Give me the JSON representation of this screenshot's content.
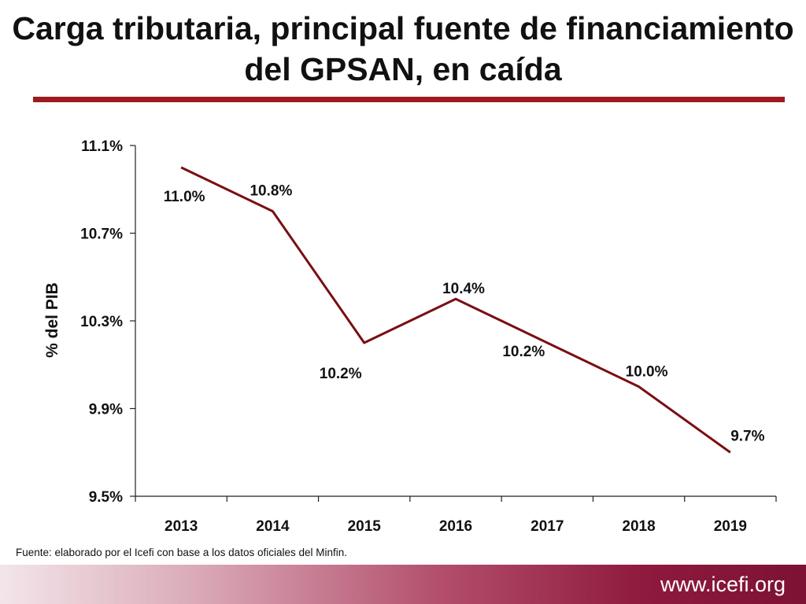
{
  "title": "Carga tributaria, principal fuente de financiamiento del GPSAN, en caída",
  "source_note": "Fuente: elaborado por el Icefi con base a los datos oficiales del Minfin.",
  "footer": {
    "url": "www.icefi.org"
  },
  "colors": {
    "accent": "#9b1b1f",
    "line": "#7a0f12"
  },
  "chart_data": {
    "type": "line",
    "title": "Carga tributaria, principal fuente de financiamiento del GPSAN, en caída",
    "xlabel": "",
    "ylabel": "% del PIB",
    "categories": [
      "2013",
      "2014",
      "2015",
      "2016",
      "2017",
      "2018",
      "2019"
    ],
    "values": [
      11.0,
      10.8,
      10.2,
      10.4,
      10.2,
      10.0,
      9.7
    ],
    "plot_values": [
      11.0,
      10.8,
      10.2,
      10.4,
      10.2,
      10.0,
      9.7
    ],
    "data_labels": [
      "11.0%",
      "10.8%",
      "10.2%",
      "10.4%",
      "10.2%",
      "10.0%",
      "9.7%"
    ],
    "ylim": [
      9.5,
      11.1
    ],
    "yticks": [
      11.1,
      10.7,
      10.3,
      9.9,
      9.5
    ],
    "ytick_labels": [
      "11.1%",
      "10.7%",
      "10.3%",
      "9.9%",
      "9.5%"
    ],
    "grid": false,
    "legend": "none"
  }
}
